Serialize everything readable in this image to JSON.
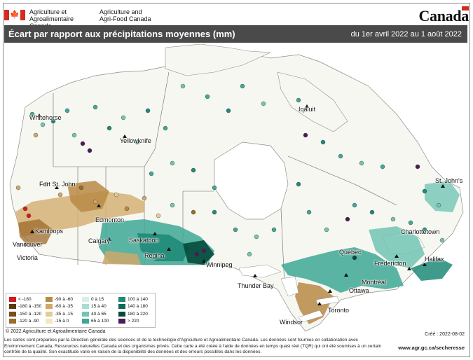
{
  "header": {
    "dept_fr_line1": "Agriculture et",
    "dept_fr_line2": "Agroalimentaire Canada",
    "dept_en_line1": "Agriculture and",
    "dept_en_line2": "Agri-Food Canada",
    "wordmark": "Canada"
  },
  "title": {
    "text": "Écart par rapport aux précipitations moyennes (mm)",
    "dates": "du 1er avril 2022 au 1 août 2022"
  },
  "cities": [
    {
      "label": "Whitehorse"
    },
    {
      "label": "Yellowknife"
    },
    {
      "label": "Iqaluit"
    },
    {
      "label": "Fort St. John"
    },
    {
      "label": "Kamloops"
    },
    {
      "label": "Edmonton"
    },
    {
      "label": "Vancouver"
    },
    {
      "label": "Calgary"
    },
    {
      "label": "Saskatoon"
    },
    {
      "label": "Victoria"
    },
    {
      "label": "Regina"
    },
    {
      "label": "Winnipeg"
    },
    {
      "label": "Thunder Bay"
    },
    {
      "label": "St. John's"
    },
    {
      "label": "Charlottetown"
    },
    {
      "label": "Québec"
    },
    {
      "label": "Fredericton"
    },
    {
      "label": "Halifax"
    },
    {
      "label": "Montréal"
    },
    {
      "label": "Ottawa"
    },
    {
      "label": "Toronto"
    },
    {
      "label": "Windsor"
    }
  ],
  "legend": [
    {
      "label": "< -180",
      "color": "#d7191c"
    },
    {
      "label": "-180 à -150",
      "color": "#5a3a12"
    },
    {
      "label": "-150 à -120",
      "color": "#7a4d1a"
    },
    {
      "label": "-120 à -90",
      "color": "#9e6a2a"
    },
    {
      "label": "-90 à -60",
      "color": "#b88a45"
    },
    {
      "label": "-60 à -35",
      "color": "#cfa86a"
    },
    {
      "label": "-35 à -15",
      "color": "#e4cc96"
    },
    {
      "label": "-15 à 0",
      "color": "#f4e6c4"
    },
    {
      "label": "0 à 15",
      "color": "#d6efea"
    },
    {
      "label": "15 à 40",
      "color": "#a9ddd2"
    },
    {
      "label": "40 à 65",
      "color": "#72c4b3"
    },
    {
      "label": "65 à 100",
      "color": "#3ea895"
    },
    {
      "label": "100 à 140",
      "color": "#1f8a78"
    },
    {
      "label": "140 à 180",
      "color": "#0f6a5a"
    },
    {
      "label": "180 à 220",
      "color": "#064a3c"
    },
    {
      "label": "> 220",
      "color": "#4b1a5a"
    }
  ],
  "footer": {
    "copyright": "© 2022 Agriculture et Agroalimentaire Canada",
    "created": "Créé : 2022-08-02",
    "disclaimer": "Les cartes sont préparées par la Direction générale des sciences et de la technologie d'Agriculture et Agroalimentaire Canada. Les données sont fournies en collaboration avec Environnement Canada, Ressources naturelles Canada et des organismes privés. Cette carte a été créée à l'aide de données en temps quasi réel (TQR) qui ont été soumises à un certain contrôle de la qualité. Son exactitude varie en raison de la disponibilité des données et des erreurs possibles dans les données.",
    "url": "www.agr.gc.ca/secheresse"
  }
}
